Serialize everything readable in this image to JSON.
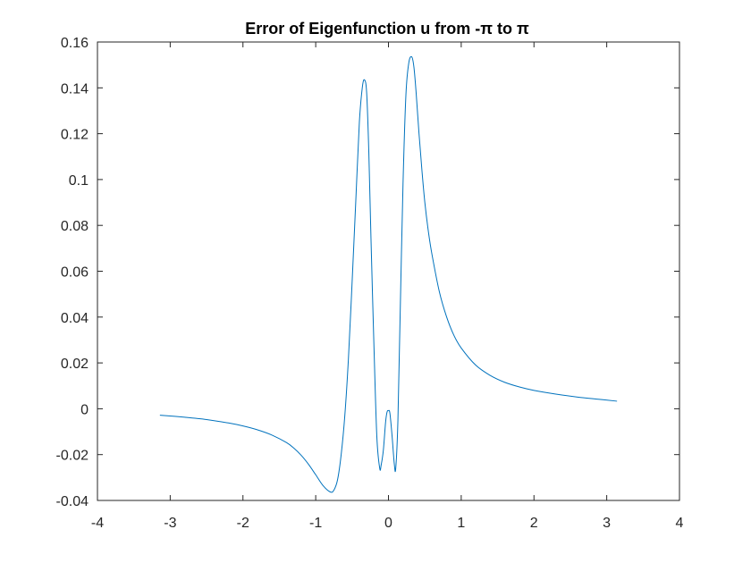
{
  "chart_data": {
    "type": "line",
    "title": "Error of Eigenfunction u from -π to π",
    "xlabel": "",
    "ylabel": "",
    "xlim": [
      -4,
      4
    ],
    "ylim": [
      -0.04,
      0.16
    ],
    "xticks": [
      -4,
      -3,
      -2,
      -1,
      0,
      1,
      2,
      3,
      4
    ],
    "xtick_labels": [
      "-4",
      "-3",
      "-2",
      "-1",
      "0",
      "1",
      "2",
      "3",
      "4"
    ],
    "yticks": [
      -0.04,
      -0.02,
      0,
      0.02,
      0.04,
      0.06,
      0.08,
      0.1,
      0.12,
      0.14,
      0.16
    ],
    "ytick_labels": [
      "-0.04",
      "-0.02",
      "0",
      "0.02",
      "0.04",
      "0.06",
      "0.08",
      "0.1",
      "0.12",
      "0.14",
      "0.16"
    ],
    "grid": false,
    "colors": {
      "line": "#0072bd",
      "axes": "#262626"
    },
    "series": [
      {
        "x": [
          -3.1416,
          -2.8,
          -2.5,
          -2.2,
          -2.0,
          -1.8,
          -1.6,
          -1.4,
          -1.3,
          -1.2,
          -1.1,
          -1.0,
          -0.9,
          -0.8,
          -0.75,
          -0.7,
          -0.65,
          -0.6,
          -0.55,
          -0.5,
          -0.45,
          -0.4,
          -0.36,
          -0.33,
          -0.3,
          -0.27,
          -0.24,
          -0.2,
          -0.16,
          -0.12,
          -0.1,
          -0.07,
          -0.04,
          -0.02,
          0.0,
          0.02,
          0.05,
          0.08,
          0.1,
          0.13,
          0.16,
          0.2,
          0.24,
          0.28,
          0.32,
          0.35,
          0.38,
          0.42,
          0.46,
          0.5,
          0.55,
          0.6,
          0.7,
          0.8,
          0.9,
          1.0,
          1.2,
          1.4,
          1.6,
          1.8,
          2.0,
          2.3,
          2.6,
          2.9,
          3.1416
        ],
        "y": [
          -0.0028,
          -0.0037,
          -0.0047,
          -0.0062,
          -0.0075,
          -0.0092,
          -0.0115,
          -0.0148,
          -0.0172,
          -0.0203,
          -0.0242,
          -0.0288,
          -0.0335,
          -0.0363,
          -0.0355,
          -0.031,
          -0.02,
          -0.003,
          0.022,
          0.055,
          0.09,
          0.125,
          0.14,
          0.1435,
          0.138,
          0.112,
          0.074,
          0.028,
          -0.012,
          -0.026,
          -0.0245,
          -0.018,
          -0.006,
          -0.0015,
          -0.0008,
          -0.002,
          -0.012,
          -0.024,
          -0.026,
          -0.005,
          0.04,
          0.098,
          0.137,
          0.151,
          0.1535,
          0.149,
          0.138,
          0.12,
          0.104,
          0.09,
          0.077,
          0.067,
          0.051,
          0.04,
          0.032,
          0.0265,
          0.019,
          0.0145,
          0.0115,
          0.0095,
          0.008,
          0.0064,
          0.0051,
          0.0041,
          0.0033
        ]
      }
    ]
  }
}
